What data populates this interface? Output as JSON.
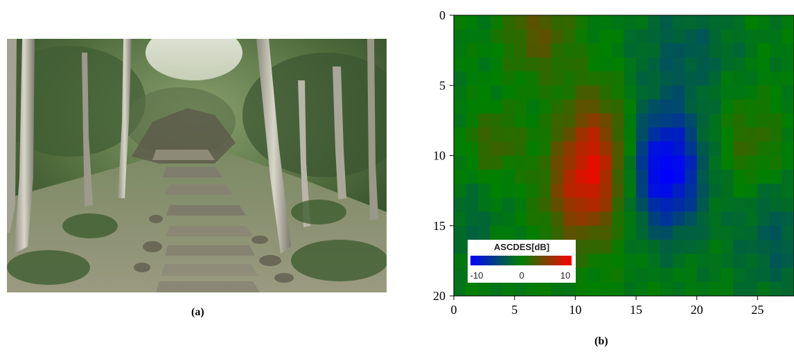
{
  "captions": {
    "a": "(a)",
    "b": "(b)"
  },
  "photo": {
    "subject": "stone-staircase-in-forest"
  },
  "chart_data": {
    "type": "heatmap",
    "title": "",
    "xlabel": "",
    "ylabel": "",
    "xlim": [
      0,
      28
    ],
    "ylim": [
      20,
      0
    ],
    "xticks": [
      "0",
      "5",
      "10",
      "15",
      "20",
      "25"
    ],
    "yticks": [
      "0",
      "5",
      "10",
      "15",
      "20"
    ],
    "xtick_values": [
      0,
      5,
      10,
      15,
      20,
      25
    ],
    "ytick_values": [
      0,
      5,
      10,
      15,
      20
    ],
    "grid": false,
    "colormap": [
      "#0000ff",
      "#008000",
      "#ff0000"
    ],
    "colorbar": {
      "title": "ASCDES[dB]",
      "range": [
        -10,
        10
      ],
      "ticks": [
        "-10",
        "0",
        "10"
      ],
      "placement": "bottom-left"
    },
    "blobs": [
      {
        "x": 11.5,
        "y": 10.5,
        "sx": 2.0,
        "sy": 3.5,
        "amp": 8
      },
      {
        "x": 7.0,
        "y": 1.0,
        "sx": 2.0,
        "sy": 2.5,
        "amp": 4
      },
      {
        "x": 3.5,
        "y": 9.0,
        "sx": 1.6,
        "sy": 1.6,
        "amp": 3
      },
      {
        "x": 9.5,
        "y": 13.0,
        "sx": 2.0,
        "sy": 2.5,
        "amp": 3
      },
      {
        "x": 24.5,
        "y": 9.0,
        "sx": 1.8,
        "sy": 2.2,
        "amp": 2.5
      },
      {
        "x": 17.5,
        "y": 11.0,
        "sx": 2.0,
        "sy": 3.0,
        "amp": -10
      },
      {
        "x": 19.0,
        "y": 2.5,
        "sx": 3.0,
        "sy": 2.5,
        "amp": -2.5
      },
      {
        "x": 27.0,
        "y": 16.0,
        "sx": 3.0,
        "sy": 3.0,
        "amp": -2.5
      },
      {
        "x": 1.0,
        "y": 15.0,
        "sx": 2.0,
        "sy": 2.0,
        "amp": -1.5
      }
    ],
    "base_value": -0.5
  }
}
